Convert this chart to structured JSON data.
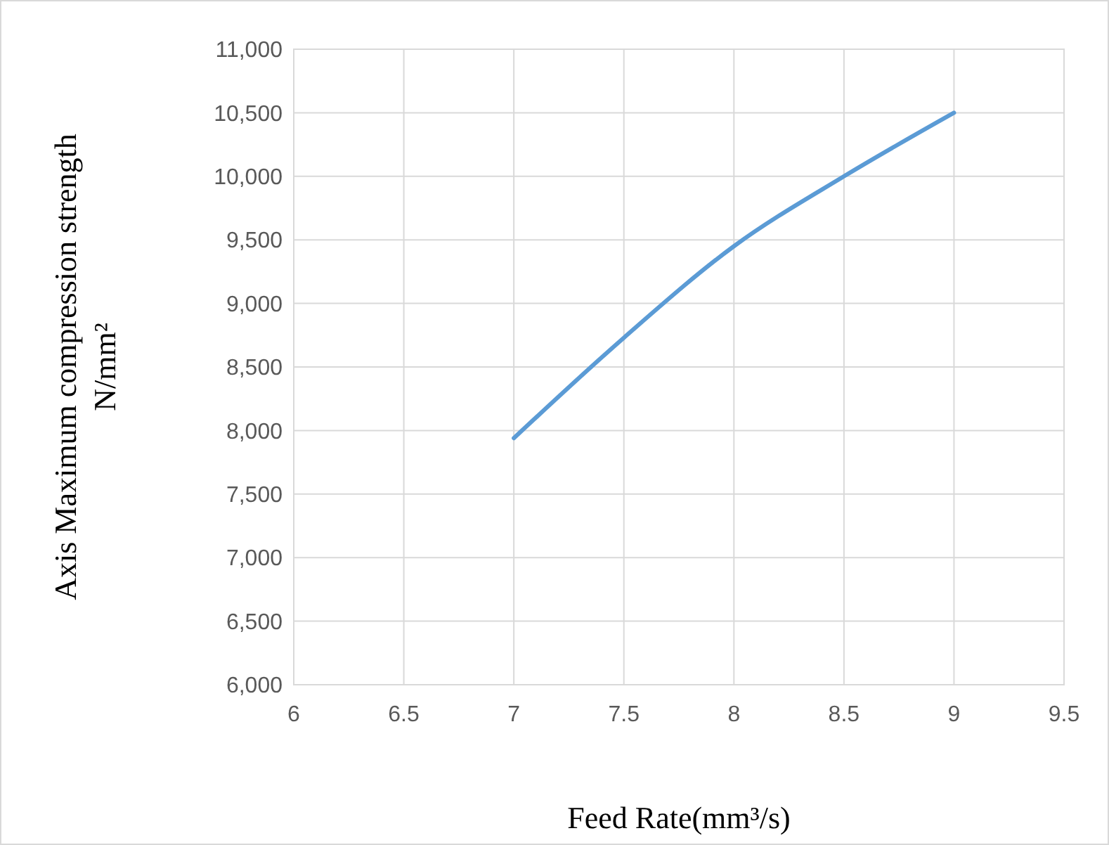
{
  "chart_data": {
    "type": "line",
    "xlabel": "Feed Rate(mm³/s)",
    "ylabel": "Axis Maximum compression strength\nN/mm²",
    "x": [
      7,
      7.5,
      8,
      8.5,
      9
    ],
    "series": [
      {
        "color": "#5b9bd5",
        "values": [
          7940,
          8730,
          9450,
          10000,
          10500
        ]
      }
    ],
    "xlim": [
      6,
      9.5
    ],
    "xticks": [
      6,
      6.5,
      7,
      7.5,
      8,
      8.5,
      9,
      9.5
    ],
    "ylim": [
      6000,
      11000
    ],
    "yticks": [
      {
        "value": 6000,
        "label": "6,000"
      },
      {
        "value": 6500,
        "label": "6,500"
      },
      {
        "value": 7000,
        "label": "7,000"
      },
      {
        "value": 7500,
        "label": "7,500"
      },
      {
        "value": 8000,
        "label": "8,000"
      },
      {
        "value": 8500,
        "label": "8,500"
      },
      {
        "value": 9000,
        "label": "9,000"
      },
      {
        "value": 9500,
        "label": "9,500"
      },
      {
        "value": 10000,
        "label": "10,000"
      },
      {
        "value": 10500,
        "label": "10,500"
      },
      {
        "value": 11000,
        "label": "11,000"
      }
    ],
    "grid": true,
    "marker": "none",
    "line_style": "solid"
  }
}
